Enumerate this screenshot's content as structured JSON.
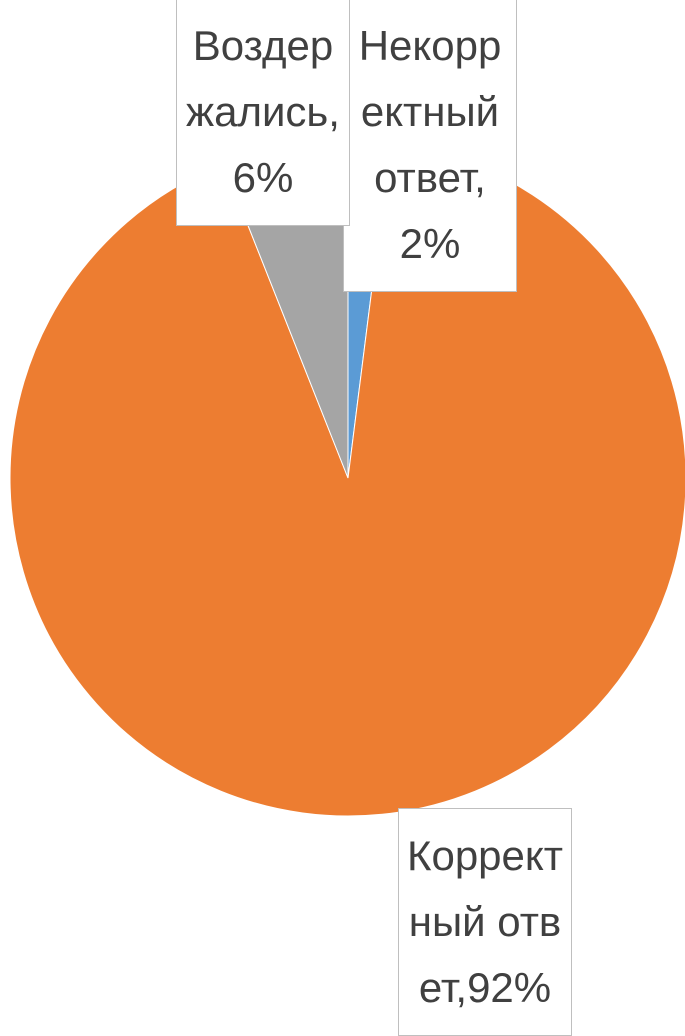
{
  "chart_data": {
    "type": "pie",
    "labels": [
      "Некорректный ответ,2%",
      "Корректный ответ,92%",
      "Воздержались,6%"
    ],
    "values": [
      2,
      92,
      6
    ],
    "colors": [
      "#5b9bd5",
      "#ed7d31",
      "#a5a5a5"
    ]
  }
}
